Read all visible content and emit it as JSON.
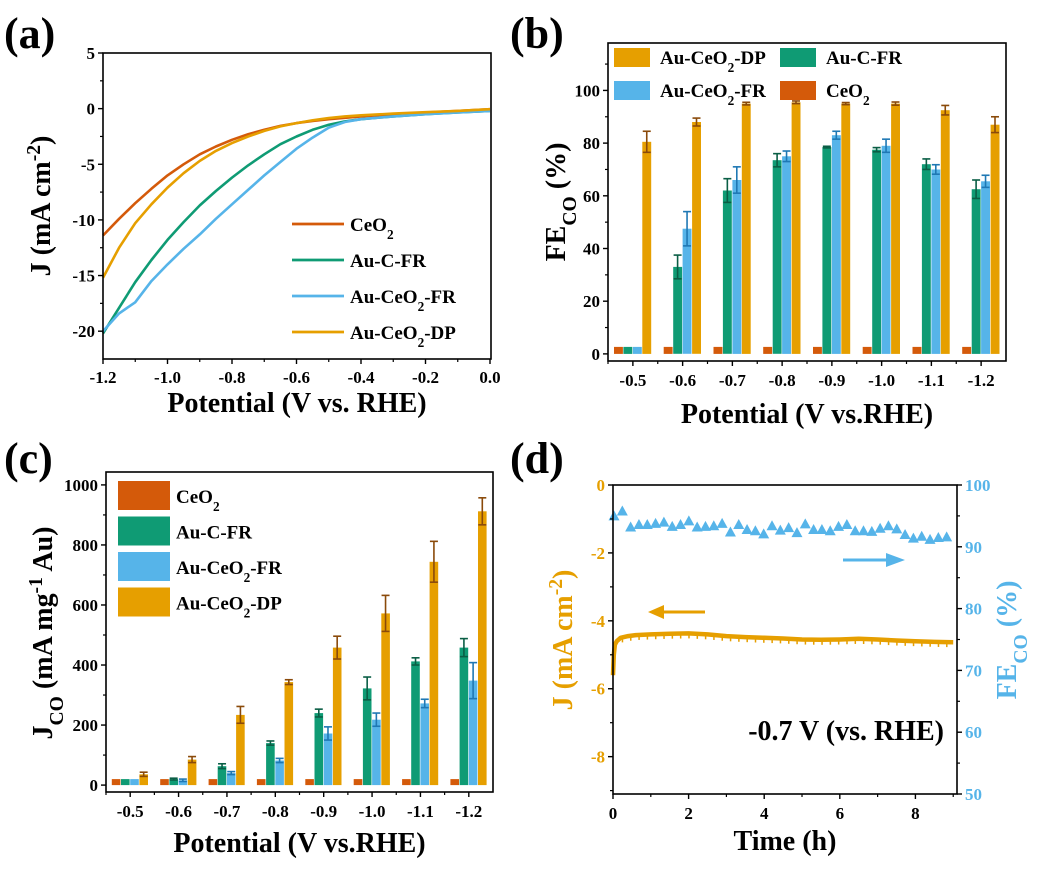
{
  "figure": {
    "panel_labels": [
      "(a)",
      "(b)",
      "(c)",
      "(d)"
    ]
  },
  "colors": {
    "CeO2": "#d45a0a",
    "Au-C-FR": "#0f9b74",
    "Au-CeO2-FR": "#56b4e9",
    "Au-CeO2-DP": "#e69f00",
    "err_CeO2": "#8a3a06",
    "err_Au-C-FR": "#0a5e45",
    "err_Au-CeO2-FR": "#1f78b4",
    "err_Au-CeO2-DP": "#8a4a0a"
  },
  "chart_data": [
    {
      "panel": "(a)",
      "type": "line",
      "title": "",
      "xlabel": "Potential (V vs. RHE)",
      "ylabel": "J (mA cm-2)",
      "xlim": [
        -1.2,
        0.0
      ],
      "ylim": [
        -22.5,
        5
      ],
      "xticks": [
        "-1.2",
        "-1.0",
        "-0.8",
        "-0.6",
        "-0.4",
        "-0.2",
        "0.0"
      ],
      "xtick_values": [
        -1.2,
        -1.0,
        -0.8,
        -0.6,
        -0.4,
        -0.2,
        0.0
      ],
      "yticks": [
        "5",
        "0",
        "-5",
        "-10",
        "-15",
        "-20"
      ],
      "ytick_values": [
        5,
        0,
        -5,
        -10,
        -15,
        -20
      ],
      "legend_position": "bottom-right",
      "series": [
        {
          "name": "CeO2",
          "label_main": "CeO",
          "label_sub": "2",
          "label_tail": "",
          "x": [
            -1.2,
            -1.15,
            -1.1,
            -1.05,
            -1.0,
            -0.95,
            -0.9,
            -0.85,
            -0.8,
            -0.75,
            -0.7,
            -0.65,
            -0.6,
            -0.55,
            -0.5,
            -0.45,
            -0.4,
            -0.3,
            -0.2,
            -0.1,
            0.0
          ],
          "y": [
            -11.4,
            -9.9,
            -8.5,
            -7.2,
            -6.0,
            -5.0,
            -4.1,
            -3.4,
            -2.8,
            -2.3,
            -1.9,
            -1.55,
            -1.3,
            -1.1,
            -0.95,
            -0.82,
            -0.7,
            -0.5,
            -0.35,
            -0.2,
            -0.05
          ]
        },
        {
          "name": "Au-C-FR",
          "label_main": "Au-C-FR",
          "label_sub": "",
          "label_tail": "",
          "x": [
            -1.2,
            -1.15,
            -1.1,
            -1.05,
            -1.0,
            -0.95,
            -0.9,
            -0.85,
            -0.8,
            -0.75,
            -0.7,
            -0.65,
            -0.6,
            -0.55,
            -0.5,
            -0.45,
            -0.4,
            -0.3,
            -0.2,
            -0.1,
            0.0
          ],
          "y": [
            -20.2,
            -17.9,
            -15.6,
            -13.6,
            -11.8,
            -10.2,
            -8.7,
            -7.4,
            -6.2,
            -5.1,
            -4.1,
            -3.2,
            -2.5,
            -1.9,
            -1.45,
            -1.15,
            -0.95,
            -0.7,
            -0.5,
            -0.35,
            -0.2
          ]
        },
        {
          "name": "Au-CeO2-FR",
          "label_main": "Au-CeO",
          "label_sub": "2",
          "label_tail": "-FR",
          "x": [
            -1.2,
            -1.15,
            -1.1,
            -1.05,
            -1.0,
            -0.95,
            -0.9,
            -0.85,
            -0.8,
            -0.75,
            -0.7,
            -0.65,
            -0.6,
            -0.55,
            -0.5,
            -0.45,
            -0.4,
            -0.3,
            -0.2,
            -0.1,
            0.0
          ],
          "y": [
            -20.0,
            -18.4,
            -17.4,
            -15.5,
            -14.0,
            -12.6,
            -11.3,
            -9.9,
            -8.6,
            -7.3,
            -6.0,
            -4.8,
            -3.6,
            -2.6,
            -1.7,
            -1.2,
            -0.95,
            -0.7,
            -0.5,
            -0.35,
            -0.2
          ]
        },
        {
          "name": "Au-CeO2-DP",
          "label_main": "Au-CeO",
          "label_sub": "2",
          "label_tail": "-DP",
          "x": [
            -1.2,
            -1.15,
            -1.1,
            -1.05,
            -1.0,
            -0.95,
            -0.9,
            -0.85,
            -0.8,
            -0.75,
            -0.7,
            -0.65,
            -0.6,
            -0.55,
            -0.5,
            -0.45,
            -0.4,
            -0.3,
            -0.2,
            -0.1,
            0.0
          ],
          "y": [
            -15.2,
            -12.5,
            -10.3,
            -8.6,
            -7.1,
            -5.8,
            -4.7,
            -3.8,
            -3.1,
            -2.5,
            -2.0,
            -1.6,
            -1.3,
            -1.05,
            -0.85,
            -0.7,
            -0.6,
            -0.45,
            -0.32,
            -0.2,
            -0.05
          ]
        }
      ]
    },
    {
      "panel": "(b)",
      "type": "bar",
      "title": "",
      "xlabel": "Potential (V vs.RHE)",
      "ylabel_main": "FE",
      "ylabel_sub": "CO",
      "ylabel_tail": " (%)",
      "ylim": [
        -2.7,
        118
      ],
      "yticks": [
        "0",
        "20",
        "40",
        "60",
        "80",
        "100"
      ],
      "ytick_values": [
        0,
        20,
        40,
        60,
        80,
        100
      ],
      "categories": [
        "-0.5",
        "-0.6",
        "-0.7",
        "-0.8",
        "-0.9",
        "-1.0",
        "-1.1",
        "-1.2"
      ],
      "legend_position": "top",
      "legend_order": [
        "Au-CeO2-DP",
        "Au-C-FR",
        "Au-CeO2-FR",
        "CeO2"
      ],
      "series": [
        {
          "name": "CeO2",
          "values": [
            0,
            0,
            0,
            0,
            0,
            0,
            0,
            0
          ],
          "errors": [
            0,
            0,
            0,
            0,
            0,
            0,
            0,
            0
          ]
        },
        {
          "name": "Au-C-FR",
          "values": [
            0,
            33,
            62,
            73.5,
            78.5,
            77.5,
            72,
            62.5
          ],
          "errors": [
            0,
            4.5,
            4.5,
            2.5,
            0.3,
            0.8,
            2,
            3.5
          ]
        },
        {
          "name": "Au-CeO2-FR",
          "values": [
            0,
            47.5,
            66,
            75,
            83,
            79,
            70,
            65.5
          ],
          "errors": [
            0,
            6.5,
            5,
            2,
            1.5,
            2.5,
            1.8,
            2.3
          ]
        },
        {
          "name": "Au-CeO2-DP",
          "values": [
            80.5,
            88,
            95,
            95.5,
            95,
            95,
            92.5,
            87
          ],
          "errors": [
            4,
            1.5,
            0.5,
            0.5,
            0.4,
            0.6,
            1.8,
            3
          ]
        }
      ],
      "legend_labels": [
        {
          "main": "Au-CeO",
          "sub": "2",
          "tail": "-DP"
        },
        {
          "main": "Au-C-FR",
          "sub": "",
          "tail": ""
        },
        {
          "main": "Au-CeO",
          "sub": "2",
          "tail": "-FR"
        },
        {
          "main": "CeO",
          "sub": "2",
          "tail": ""
        }
      ]
    },
    {
      "panel": "(c)",
      "type": "bar",
      "title": "",
      "xlabel": "Potential (V vs.RHE)",
      "ylabel_main": "J",
      "ylabel_sub": "CO",
      "ylabel_tail": " (mA mg",
      "ylabel_sup": "-1",
      "ylabel_end": " Au)",
      "ylim": [
        -23,
        1043
      ],
      "yticks": [
        "0",
        "200",
        "400",
        "600",
        "800",
        "1000"
      ],
      "ytick_values": [
        0,
        200,
        400,
        600,
        800,
        1000
      ],
      "categories": [
        "-0.5",
        "-0.6",
        "-0.7",
        "-0.8",
        "-0.9",
        "-1.0",
        "-1.1",
        "-1.2"
      ],
      "legend_position": "top-left",
      "legend_order": [
        "CeO2",
        "Au-C-FR",
        "Au-CeO2-FR",
        "Au-CeO2-DP"
      ],
      "series": [
        {
          "name": "CeO2",
          "values": [
            0,
            0,
            0,
            0,
            0,
            0,
            0,
            0
          ],
          "errors": [
            0,
            0,
            0,
            0,
            0,
            0,
            0,
            0
          ]
        },
        {
          "name": "Au-C-FR",
          "values": [
            0,
            20,
            63,
            140,
            240,
            322,
            412,
            458
          ],
          "errors": [
            0,
            3,
            8,
            7,
            13,
            38,
            12,
            30
          ]
        },
        {
          "name": "Au-CeO2-FR",
          "values": [
            0,
            16,
            40,
            82,
            172,
            218,
            272,
            348
          ],
          "errors": [
            0,
            4,
            5,
            7,
            22,
            22,
            14,
            60
          ]
        },
        {
          "name": "Au-CeO2-DP",
          "values": [
            36,
            85,
            234,
            343,
            458,
            572,
            744,
            912
          ],
          "errors": [
            7,
            10,
            28,
            8,
            38,
            60,
            68,
            45
          ]
        }
      ],
      "legend_labels": [
        {
          "main": "CeO",
          "sub": "2",
          "tail": ""
        },
        {
          "main": "Au-C-FR",
          "sub": "",
          "tail": ""
        },
        {
          "main": "Au-CeO",
          "sub": "2",
          "tail": "-FR"
        },
        {
          "main": "Au-CeO",
          "sub": "2",
          "tail": "-DP"
        }
      ]
    },
    {
      "panel": "(d)",
      "type": "line",
      "title": "",
      "xlabel": "Time (h)",
      "ylabel_left": "J (mA cm-2)",
      "ylabel_right_main": "FE",
      "ylabel_right_sub": "CO",
      "ylabel_right_tail": " (%)",
      "xlim": [
        0,
        9.1
      ],
      "ylim_left": [
        -9.1,
        0
      ],
      "ylim_right": [
        50,
        100
      ],
      "xticks": [
        "0",
        "2",
        "4",
        "6",
        "8"
      ],
      "xtick_values": [
        0,
        2,
        4,
        6,
        8
      ],
      "yticks_left": [
        "0",
        "-2",
        "-4",
        "-6",
        "-8"
      ],
      "ytick_values_left": [
        0,
        -2,
        -4,
        -6,
        -8
      ],
      "yticks_right": [
        "50",
        "60",
        "70",
        "80",
        "90",
        "100"
      ],
      "ytick_values_right": [
        50,
        60,
        70,
        80,
        90,
        100
      ],
      "annotation": "-0.7 V (vs. RHE)",
      "series": [
        {
          "name": "J",
          "axis": "left",
          "x": [
            0,
            0.02,
            0.05,
            0.1,
            0.2,
            0.4,
            0.6,
            1.0,
            1.5,
            2.0,
            2.5,
            3.0,
            3.5,
            4.0,
            4.5,
            5.0,
            5.5,
            6.0,
            6.5,
            7.0,
            7.5,
            8.0,
            8.5,
            9.0
          ],
          "y": [
            -5.6,
            -5.0,
            -4.7,
            -4.6,
            -4.5,
            -4.45,
            -4.42,
            -4.4,
            -4.38,
            -4.37,
            -4.4,
            -4.45,
            -4.48,
            -4.5,
            -4.52,
            -4.55,
            -4.56,
            -4.55,
            -4.53,
            -4.55,
            -4.58,
            -4.6,
            -4.62,
            -4.63
          ]
        },
        {
          "name": "FE_CO",
          "axis": "right",
          "x": [
            0.0,
            0.22,
            0.44,
            0.66,
            0.88,
            1.1,
            1.32,
            1.54,
            1.76,
            1.98,
            2.2,
            2.42,
            2.64,
            2.86,
            3.08,
            3.3,
            3.52,
            3.74,
            3.96,
            4.18,
            4.4,
            4.62,
            4.84,
            5.06,
            5.28,
            5.5,
            5.72,
            5.94,
            6.16,
            6.38,
            6.6,
            6.82,
            7.04,
            7.26,
            7.48,
            7.7,
            7.92,
            8.14,
            8.36,
            8.58,
            8.8
          ],
          "y": [
            95.0,
            95.8,
            93.2,
            93.6,
            93.6,
            93.8,
            94.0,
            93.3,
            93.6,
            94.2,
            93.2,
            93.3,
            93.4,
            93.8,
            92.4,
            93.6,
            92.8,
            92.6,
            92.1,
            93.4,
            92.7,
            93.1,
            92.3,
            93.7,
            92.8,
            92.8,
            92.6,
            93.3,
            93.6,
            92.6,
            92.6,
            92.5,
            93.0,
            93.4,
            92.9,
            92.0,
            91.4,
            91.7,
            91.2,
            91.5,
            91.6
          ]
        }
      ],
      "arrows": [
        {
          "label": "J axis arrow",
          "direction": "left",
          "color": "#e69f00"
        },
        {
          "label": "FE axis arrow",
          "direction": "right",
          "color": "#56b4e9"
        }
      ]
    }
  ]
}
